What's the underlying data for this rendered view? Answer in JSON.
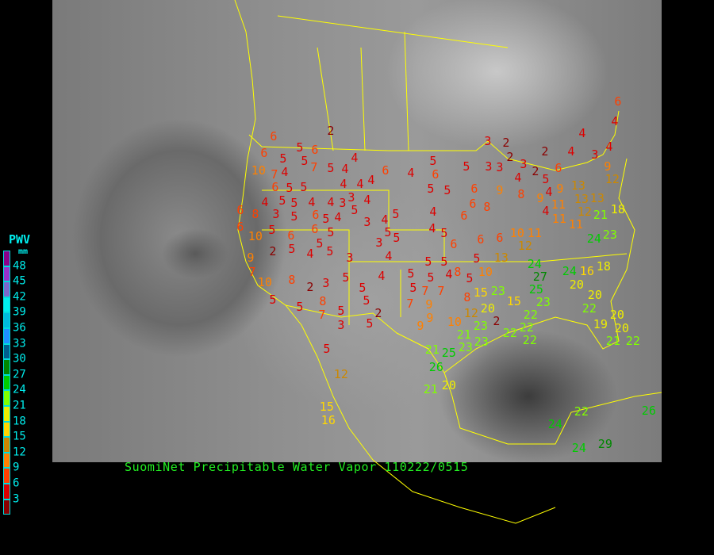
{
  "title": "SuomiNet Precipitable Water Vapor  110222/0515",
  "legend": {
    "title": "PWV",
    "unit": "mm",
    "labels": [
      "48",
      "45",
      "42",
      "39",
      "36",
      "33",
      "30",
      "27",
      "24",
      "21",
      "18",
      "15",
      "12",
      "9",
      "6",
      "3"
    ],
    "colors": [
      "#8b008b",
      "#9932cc",
      "#7b68cc",
      "#00eeee",
      "#00bbdd",
      "#1e90ff",
      "#005f8f",
      "#008800",
      "#00cc00",
      "#80ff00",
      "#eeee00",
      "#ffd700",
      "#cc8800",
      "#ff8000",
      "#ff4000",
      "#dd0000",
      "#8b0000"
    ]
  },
  "border_color": "#ffff00",
  "stations": [
    2,
    6,
    5,
    6,
    6,
    4,
    5,
    5,
    10,
    4,
    7,
    5,
    4,
    7,
    6,
    4,
    5,
    6,
    5,
    3,
    2,
    2,
    4,
    4,
    3,
    4,
    4,
    6,
    9,
    12,
    3,
    3,
    2,
    3,
    4,
    2,
    5,
    6,
    13,
    13,
    9,
    4,
    9,
    4,
    8,
    9,
    6,
    5,
    5,
    4,
    4,
    4,
    3,
    4,
    6,
    5,
    5,
    5,
    4,
    4,
    3,
    5,
    4,
    5,
    6,
    8,
    3,
    5,
    6,
    4,
    5,
    3,
    4,
    5,
    4,
    6,
    8,
    6,
    6,
    10,
    5,
    6,
    6,
    5,
    5,
    3,
    5,
    4,
    5,
    6,
    6,
    6,
    10,
    11,
    12,
    13,
    10,
    5,
    5,
    5,
    4,
    8,
    5,
    2,
    5,
    4,
    5,
    5,
    3,
    4,
    9,
    7,
    10,
    8,
    2,
    3,
    5,
    5,
    4,
    5,
    5,
    5,
    2,
    5,
    8,
    7,
    5,
    3,
    5,
    5,
    5,
    7,
    7,
    7,
    9,
    8,
    15,
    23,
    15,
    20,
    12,
    10,
    9,
    9,
    21,
    23,
    2,
    22,
    23,
    23,
    21,
    26,
    25,
    21,
    20,
    24,
    27,
    24,
    20,
    16,
    18,
    25,
    23,
    22,
    22,
    22,
    22,
    20,
    19,
    20,
    20,
    21,
    22,
    21,
    12,
    18,
    24,
    23,
    5,
    12,
    15,
    22,
    24,
    26,
    24,
    29,
    16,
    11,
    11,
    11,
    13
  ]
}
